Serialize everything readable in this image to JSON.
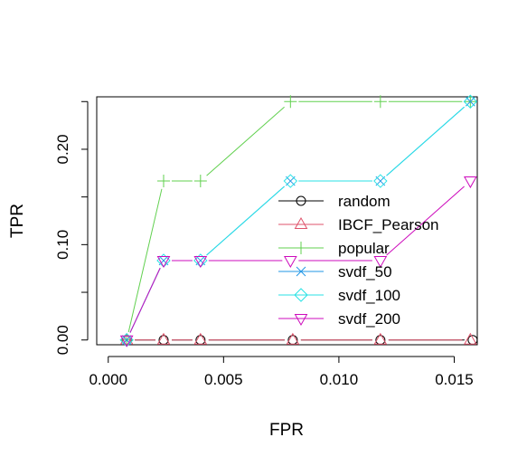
{
  "chart_data": {
    "type": "line",
    "title": "",
    "xlabel": "FPR",
    "ylabel": "TPR",
    "xlim": [
      -0.0005,
      0.016
    ],
    "ylim": [
      -0.005,
      0.255
    ],
    "xticks": [
      0.0,
      0.005,
      0.01,
      0.015
    ],
    "xtick_labels": [
      "0.000",
      "0.005",
      "0.010",
      "0.015"
    ],
    "yticks": [
      0.0,
      0.05,
      0.1,
      0.15,
      0.2,
      0.25
    ],
    "ytick_labels": [
      "0.00",
      "",
      "0.10",
      "",
      "0.20",
      ""
    ],
    "grid": false,
    "legend_position": "bottom-right",
    "series": [
      {
        "name": "random",
        "color": "#000000",
        "marker": "circle",
        "x": [
          0.0008,
          0.0024,
          0.004,
          0.008,
          0.0118,
          0.0158
        ],
        "y": [
          0,
          0,
          0,
          0,
          0,
          0
        ]
      },
      {
        "name": "IBCF_Pearson",
        "color": "#DF536B",
        "marker": "triangle-up",
        "x": [
          0.0008,
          0.0024,
          0.004,
          0.008,
          0.0118,
          0.0157
        ],
        "y": [
          0,
          0,
          0,
          0,
          0,
          0
        ]
      },
      {
        "name": "popular",
        "color": "#61D04F",
        "marker": "plus",
        "x": [
          0.0008,
          0.0024,
          0.004,
          0.0079,
          0.0118,
          0.0157
        ],
        "y": [
          0,
          0.1667,
          0.1667,
          0.25,
          0.25,
          0.25
        ]
      },
      {
        "name": "svdf_50",
        "color": "#2297E6",
        "marker": "cross",
        "x": [
          0.0008,
          0.0024,
          0.004,
          0.0079,
          0.0118,
          0.0157
        ],
        "y": [
          0,
          0.0833,
          0.0833,
          0.1667,
          0.1667,
          0.25
        ]
      },
      {
        "name": "svdf_100",
        "color": "#28E2E5",
        "marker": "diamond",
        "x": [
          0.0008,
          0.0024,
          0.004,
          0.0079,
          0.0118,
          0.0157
        ],
        "y": [
          0,
          0.0833,
          0.0833,
          0.1667,
          0.1667,
          0.25
        ]
      },
      {
        "name": "svdf_200",
        "color": "#CD0BBC",
        "marker": "triangle-down",
        "x": [
          0.0008,
          0.0024,
          0.004,
          0.0079,
          0.0118,
          0.0157
        ],
        "y": [
          0,
          0.0833,
          0.0833,
          0.0833,
          0.0833,
          0.1667
        ]
      }
    ]
  }
}
